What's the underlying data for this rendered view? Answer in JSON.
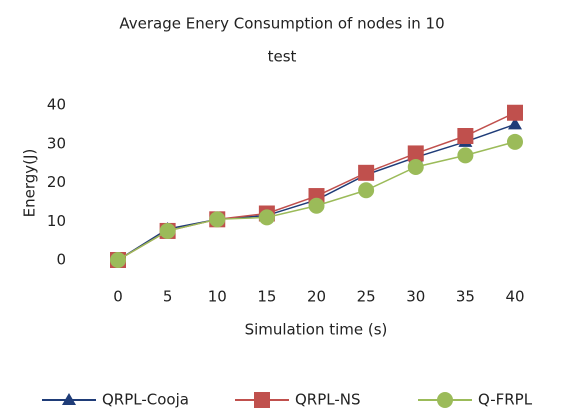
{
  "chart_data": {
    "type": "line",
    "title": [
      "Average Enery Consumption of nodes in 10",
      "test"
    ],
    "x_label": "Simulation time  (s)",
    "y_label": "Energy(J)",
    "x": [
      0,
      5,
      10,
      15,
      20,
      25,
      30,
      35,
      40
    ],
    "xlim": [
      0,
      40
    ],
    "xticks": [
      0,
      5,
      10,
      15,
      20,
      25,
      30,
      35,
      40
    ],
    "ylim": [
      0,
      40
    ],
    "yticks": [
      0,
      10,
      20,
      30,
      40
    ],
    "grid": false,
    "legend": "bottom",
    "series": [
      {
        "name": "QRPL-Cooja",
        "color": "#1f3c78",
        "marker": "triangle",
        "values": [
          0,
          8,
          10.5,
          11.5,
          15.5,
          22,
          26.5,
          30.5,
          35
        ]
      },
      {
        "name": "QRPL-NS",
        "color": "#c0504d",
        "marker": "square",
        "values": [
          0,
          7.5,
          10.5,
          12,
          16.5,
          22.5,
          27.5,
          32,
          38
        ]
      },
      {
        "name": "Q-FRPL",
        "color": "#9bbb59",
        "marker": "circle",
        "values": [
          0,
          7.5,
          10.5,
          11,
          14,
          18,
          24,
          27,
          30.5
        ]
      }
    ]
  }
}
